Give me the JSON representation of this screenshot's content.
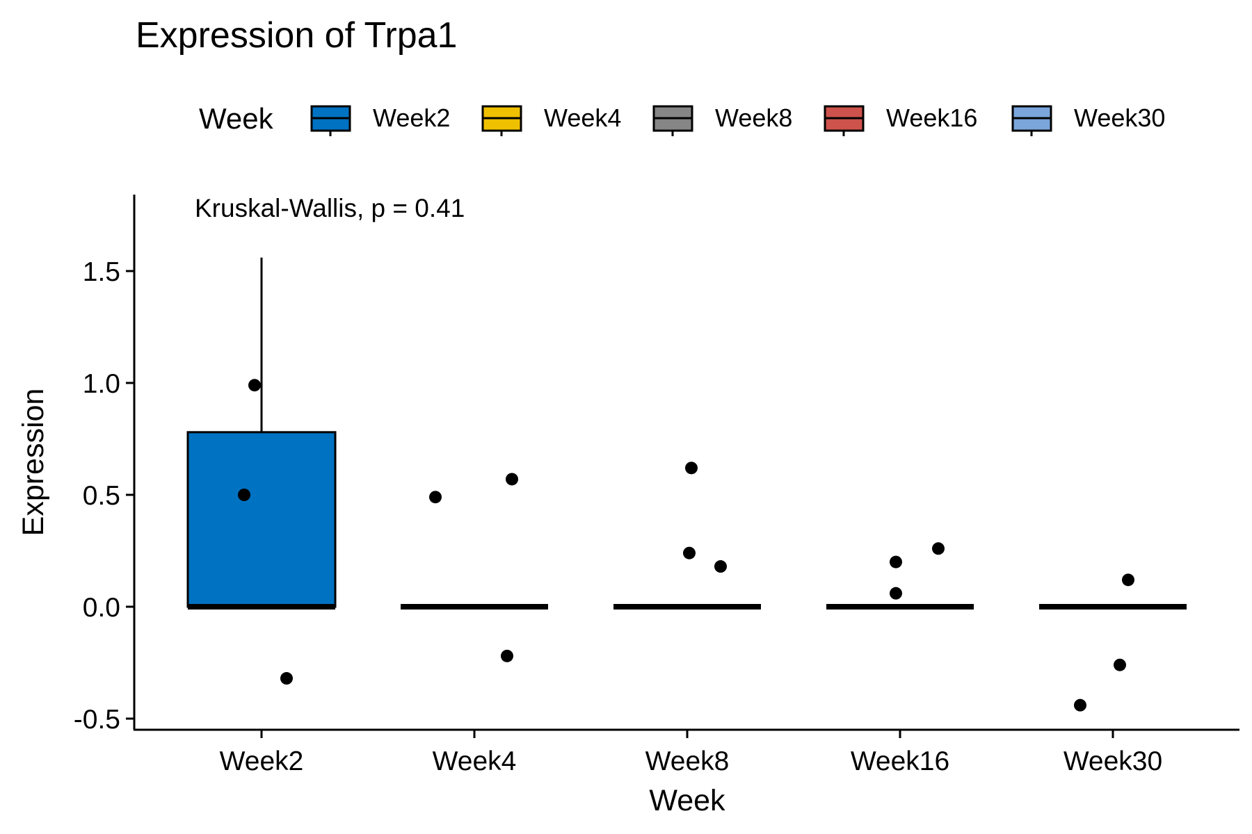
{
  "chart_data": {
    "type": "box",
    "title": "Expression of Trpa1",
    "xlabel": "Week",
    "ylabel": "Expression",
    "ylim": [
      -0.55,
      1.8
    ],
    "yticks": [
      -0.5,
      0.0,
      0.5,
      1.0,
      1.5
    ],
    "ytick_labels": [
      "-0.5",
      "0.0",
      "0.5",
      "1.0",
      "1.5"
    ],
    "categories": [
      "Week2",
      "Week4",
      "Week8",
      "Week16",
      "Week30"
    ],
    "legend": {
      "title": "Week",
      "position": "top",
      "entries": [
        "Week2",
        "Week4",
        "Week8",
        "Week16",
        "Week30"
      ]
    },
    "colors": {
      "Week2": "#0072C2",
      "Week4": "#EFC000",
      "Week8": "#868686",
      "Week16": "#CD534C",
      "Week30": "#7AA6DC"
    },
    "annotation": "Kruskal-Wallis, p = 0.41",
    "boxes": [
      {
        "category": "Week2",
        "lower": 0.0,
        "q1": 0.0,
        "median": 0.0,
        "q3": 0.78,
        "upper": 1.56
      },
      {
        "category": "Week4",
        "lower": 0.0,
        "q1": 0.0,
        "median": 0.0,
        "q3": 0.0,
        "upper": 0.0
      },
      {
        "category": "Week8",
        "lower": 0.0,
        "q1": 0.0,
        "median": 0.0,
        "q3": 0.0,
        "upper": 0.0
      },
      {
        "category": "Week16",
        "lower": 0.0,
        "q1": 0.0,
        "median": 0.0,
        "q3": 0.0,
        "upper": 0.0
      },
      {
        "category": "Week30",
        "lower": 0.0,
        "q1": 0.0,
        "median": 0.0,
        "q3": 0.0,
        "upper": 0.0
      }
    ],
    "points": [
      {
        "category": "Week2",
        "values": [
          0.99,
          0.5,
          -0.32
        ]
      },
      {
        "category": "Week4",
        "values": [
          0.49,
          0.57,
          -0.22
        ]
      },
      {
        "category": "Week8",
        "values": [
          0.62,
          0.24,
          0.18
        ]
      },
      {
        "category": "Week16",
        "values": [
          0.2,
          0.26,
          0.06
        ]
      },
      {
        "category": "Week30",
        "values": [
          0.12,
          -0.26,
          -0.44
        ]
      }
    ],
    "grid": false
  }
}
